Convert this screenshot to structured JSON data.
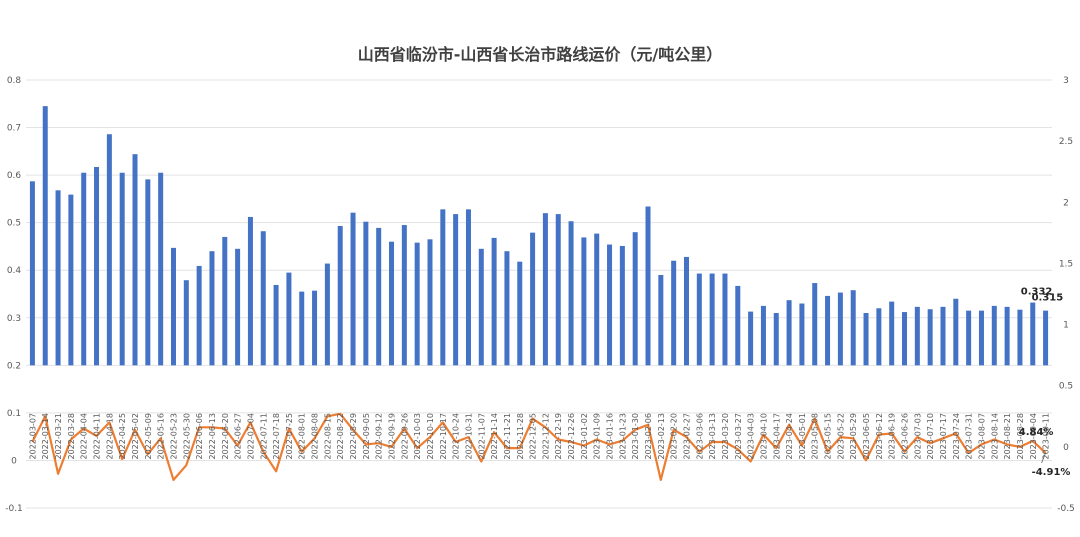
{
  "chart_data": {
    "type": "bar+line",
    "title": "山西省临汾市-山西省长治市路线运价（元/吨公里）",
    "categories": [
      "2022-03-07",
      "2022-03-14",
      "2022-03-21",
      "2022-03-28",
      "2022-04-04",
      "2022-04-11",
      "2022-04-18",
      "2022-04-25",
      "2022-05-02",
      "2022-05-09",
      "2022-05-16",
      "2022-05-23",
      "2022-05-30",
      "2022-06-06",
      "2022-06-13",
      "2022-06-20",
      "2022-06-27",
      "2022-07-04",
      "2022-07-11",
      "2022-07-18",
      "2022-07-25",
      "2022-08-01",
      "2022-08-08",
      "2022-08-15",
      "2022-08-22",
      "2022-08-29",
      "2022-09-05",
      "2022-09-12",
      "2022-09-19",
      "2022-09-26",
      "2022-10-03",
      "2022-10-10",
      "2022-10-17",
      "2022-10-24",
      "2022-10-31",
      "2022-11-07",
      "2022-11-14",
      "2022-11-21",
      "2022-11-28",
      "2022-12-05",
      "2022-12-12",
      "2022-12-19",
      "2022-12-26",
      "2023-01-02",
      "2023-01-09",
      "2023-01-16",
      "2023-01-23",
      "2023-01-30",
      "2023-02-06",
      "2023-02-13",
      "2023-02-20",
      "2023-02-27",
      "2023-03-06",
      "2023-03-13",
      "2023-03-20",
      "2023-03-27",
      "2023-04-03",
      "2023-04-10",
      "2023-04-17",
      "2023-04-24",
      "2023-05-01",
      "2023-05-08",
      "2023-05-15",
      "2023-05-22",
      "2023-05-29",
      "2023-06-05",
      "2023-06-12",
      "2023-06-19",
      "2023-06-26",
      "2023-07-03",
      "2023-07-10",
      "2023-07-17",
      "2023-07-24",
      "2023-07-31",
      "2023-08-07",
      "2023-08-14",
      "2023-08-21",
      "2023-08-28",
      "2023-09-04",
      "2023-09-11"
    ],
    "series": [
      {
        "axis": "left",
        "kind": "bar",
        "color": "#4472C4",
        "values": [
          0.587,
          0.745,
          0.568,
          0.559,
          0.605,
          0.617,
          0.686,
          0.605,
          0.644,
          0.591,
          0.605,
          0.447,
          0.379,
          0.409,
          0.44,
          0.47,
          0.445,
          0.512,
          0.482,
          0.369,
          0.395,
          0.355,
          0.357,
          0.414,
          0.493,
          0.521,
          0.502,
          0.489,
          0.46,
          0.495,
          0.458,
          0.465,
          0.528,
          0.518,
          0.528,
          0.445,
          0.468,
          0.44,
          0.418,
          0.479,
          0.52,
          0.518,
          0.503,
          0.469,
          0.477,
          0.454,
          0.451,
          0.48,
          0.534,
          0.39,
          0.42,
          0.428,
          0.393,
          0.393,
          0.393,
          0.367,
          0.313,
          0.325,
          0.31,
          0.337,
          0.33,
          0.373,
          0.346,
          0.353,
          0.358,
          0.31,
          0.32,
          0.334,
          0.312,
          0.323,
          0.318,
          0.323,
          0.34,
          0.315,
          0.315,
          0.325,
          0.323,
          0.317,
          0.332,
          0.315
        ]
      },
      {
        "axis": "right",
        "kind": "line",
        "color": "#ED7D31",
        "values": [
          0.04,
          0.25,
          -0.22,
          0.06,
          0.15,
          0.09,
          0.2,
          -0.1,
          0.14,
          -0.06,
          0.07,
          -0.27,
          -0.15,
          0.16,
          0.16,
          0.15,
          0.01,
          0.2,
          -0.04,
          -0.2,
          0.15,
          -0.04,
          0.07,
          0.25,
          0.27,
          0.14,
          0.02,
          0.03,
          0.0,
          0.15,
          -0.01,
          0.08,
          0.2,
          0.04,
          0.08,
          -0.12,
          0.12,
          -0.01,
          -0.01,
          0.23,
          0.16,
          0.06,
          0.04,
          0.01,
          0.06,
          0.02,
          0.05,
          0.14,
          0.18,
          -0.27,
          0.14,
          0.08,
          -0.04,
          0.04,
          0.04,
          -0.02,
          -0.12,
          0.1,
          -0.01,
          0.18,
          0.01,
          0.23,
          -0.04,
          0.08,
          0.07,
          -0.11,
          0.1,
          0.11,
          -0.04,
          0.08,
          0.03,
          0.07,
          0.11,
          -0.05,
          0.02,
          0.06,
          0.02,
          0.0,
          0.0484,
          -0.0491
        ]
      }
    ],
    "left_axis": {
      "min": -0.1,
      "max": 0.8,
      "step": 0.1,
      "ticks": [
        "-0.1",
        "0",
        "0.1",
        "0.2",
        "0.3",
        "0.4",
        "0.5",
        "0.6",
        "0.7",
        "0.8"
      ]
    },
    "right_axis": {
      "min": -0.5,
      "max": 3,
      "step": 0.5,
      "ticks": [
        "-0.5",
        "0",
        "0.5",
        "1",
        "1.5",
        "2",
        "2.5",
        "3"
      ]
    },
    "annotations": {
      "bar_prev": "0.332",
      "bar_last": "0.315",
      "line_prev": "4.84%",
      "line_last": "-4.91%"
    },
    "grid": true,
    "legend": "none"
  }
}
